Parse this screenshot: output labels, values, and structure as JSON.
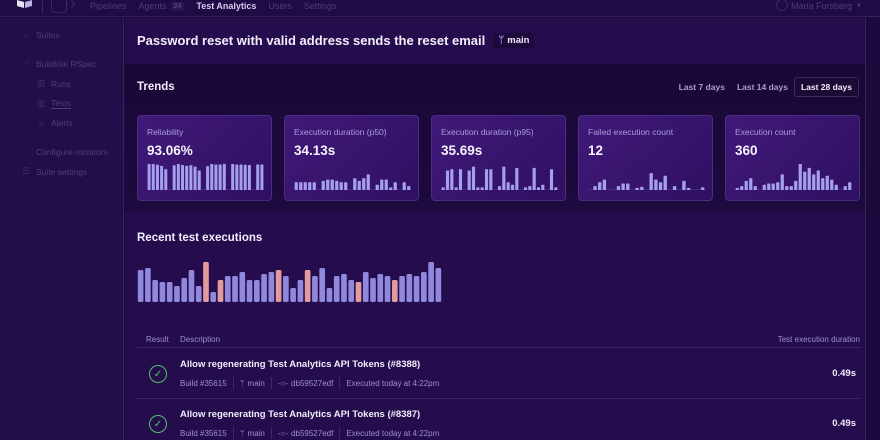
{
  "topnav": {
    "items": [
      {
        "label": "Pipelines",
        "active": false
      },
      {
        "label": "Agents",
        "active": false,
        "badge": "24"
      },
      {
        "label": "Test Analytics",
        "active": true
      },
      {
        "label": "Users",
        "active": false
      },
      {
        "label": "Settings",
        "active": false
      }
    ],
    "user_name": "Maria Forsberg"
  },
  "sidebar": {
    "back_label": "Suites",
    "suite_label": "Buildkite RSpec",
    "sub_items": [
      {
        "label": "Runs",
        "icon": "bar-chart-icon"
      },
      {
        "label": "Tests",
        "icon": "bar-chart-icon",
        "current": true
      },
      {
        "label": "Alerts",
        "icon": "bell-icon"
      }
    ],
    "bottom_items": [
      {
        "label": "Configure monitors",
        "icon": "heart-pulse-icon"
      },
      {
        "label": "Suite settings",
        "icon": "sliders-icon"
      }
    ]
  },
  "header": {
    "title": "Password reset with valid address sends the reset email",
    "branch": "main"
  },
  "trends": {
    "title": "Trends",
    "ranges": [
      {
        "label": "Last 7 days",
        "active": false
      },
      {
        "label": "Last 14 days",
        "active": false
      },
      {
        "label": "Last 28 days",
        "active": true
      }
    ],
    "cards": [
      {
        "label": "Reliability",
        "value": "93.06%"
      },
      {
        "label": "Execution duration (p50)",
        "value": "34.13s"
      },
      {
        "label": "Execution duration (p95)",
        "value": "35.69s"
      },
      {
        "label": "Failed execution count",
        "value": "12"
      },
      {
        "label": "Execution count",
        "value": "360"
      }
    ]
  },
  "recent": {
    "title": "Recent test executions",
    "columns": {
      "result": "Result",
      "description": "Description",
      "duration": "Test execution duration"
    },
    "rows": [
      {
        "status": "passed",
        "title": "Allow regenerating Test Analytics API Tokens (#8388)",
        "build": "Build #35615",
        "branch": "main",
        "commit": "db59527edf",
        "executed": "Executed today at 4:22pm",
        "duration": "0.49s"
      },
      {
        "status": "passed",
        "title": "Allow regenerating Test Analytics API Tokens (#8387)",
        "build": "Build #35615",
        "branch": "main",
        "commit": "db59527edf",
        "executed": "Executed today at 4:22pm",
        "duration": "0.49s"
      }
    ]
  },
  "colors": {
    "bar_pass": "#8f88dc",
    "bar_fail": "#e39a9c",
    "spark": "#a59ff0",
    "success": "#55c06d"
  },
  "chart_data": [
    {
      "type": "bar",
      "title": "Reliability",
      "values": [
        1,
        1,
        0.97,
        0.93,
        0.8,
        0,
        0.95,
        1,
        0.96,
        0.93,
        0.95,
        0.9,
        0.75,
        0,
        0.92,
        1,
        0.98,
        0.98,
        1,
        0,
        1,
        0.98,
        0.98,
        0.97,
        0.96,
        0,
        0.98,
        0.98
      ],
      "ylim": [
        0,
        1
      ]
    },
    {
      "type": "bar",
      "title": "Execution duration (p50)",
      "values": [
        0.3,
        0.3,
        0.3,
        0.3,
        0.3,
        0,
        0.35,
        0.4,
        0.4,
        0.35,
        0.3,
        0.3,
        0,
        0.45,
        0.35,
        0.45,
        0.6,
        0,
        0.2,
        0.4,
        0.4,
        0.1,
        0.3,
        0,
        0.3,
        0.15
      ],
      "ylim": [
        0,
        1
      ]
    },
    {
      "type": "bar",
      "title": "Execution duration (p95)",
      "values": [
        0.1,
        0.75,
        0.8,
        0.1,
        0.8,
        0,
        0.75,
        0.9,
        0.1,
        0.1,
        0.8,
        0.8,
        0,
        0.15,
        0.9,
        0.3,
        0.2,
        0.85,
        0,
        0.1,
        0.15,
        0.85,
        0.1,
        0.2,
        0,
        0.8,
        0.1
      ],
      "ylim": [
        0,
        1
      ]
    },
    {
      "type": "bar",
      "title": "Failed execution count",
      "values": [
        0,
        0.15,
        0.3,
        0.4,
        0,
        0,
        0.15,
        0.25,
        0.25,
        0,
        0.08,
        0.12,
        0,
        0.65,
        0.4,
        0.3,
        0.55,
        0,
        0.15,
        0,
        0.35,
        0.08,
        0,
        0,
        0.1
      ],
      "ylim": [
        0,
        1
      ]
    },
    {
      "type": "bar",
      "title": "Execution count",
      "values": [
        0.08,
        0.15,
        0.35,
        0.45,
        0.15,
        0,
        0.2,
        0.25,
        0.25,
        0.3,
        0.6,
        0.15,
        0.15,
        0.35,
        1,
        0.7,
        0.85,
        0.6,
        0.75,
        0.45,
        0.55,
        0.4,
        0.2,
        0,
        0.15,
        0.3
      ],
      "ylim": [
        0,
        1
      ]
    },
    {
      "type": "bar",
      "title": "Recent test executions",
      "values": [
        0.8,
        0.85,
        0.55,
        0.5,
        0.5,
        0.4,
        0.6,
        0.8,
        0.4,
        1,
        0.25,
        0.55,
        0.65,
        0.65,
        0.75,
        0.55,
        0.55,
        0.7,
        0.75,
        0.8,
        0.65,
        0.35,
        0.55,
        0.8,
        0.65,
        0.85,
        0.35,
        0.65,
        0.7,
        0.55,
        0.5,
        0.75,
        0.6,
        0.7,
        0.65,
        0.55,
        0.65,
        0.7,
        0.65,
        0.75,
        1,
        0.85
      ],
      "failed": [
        9,
        11,
        19,
        23,
        30,
        35
      ],
      "ylim": [
        0,
        1
      ]
    }
  ]
}
